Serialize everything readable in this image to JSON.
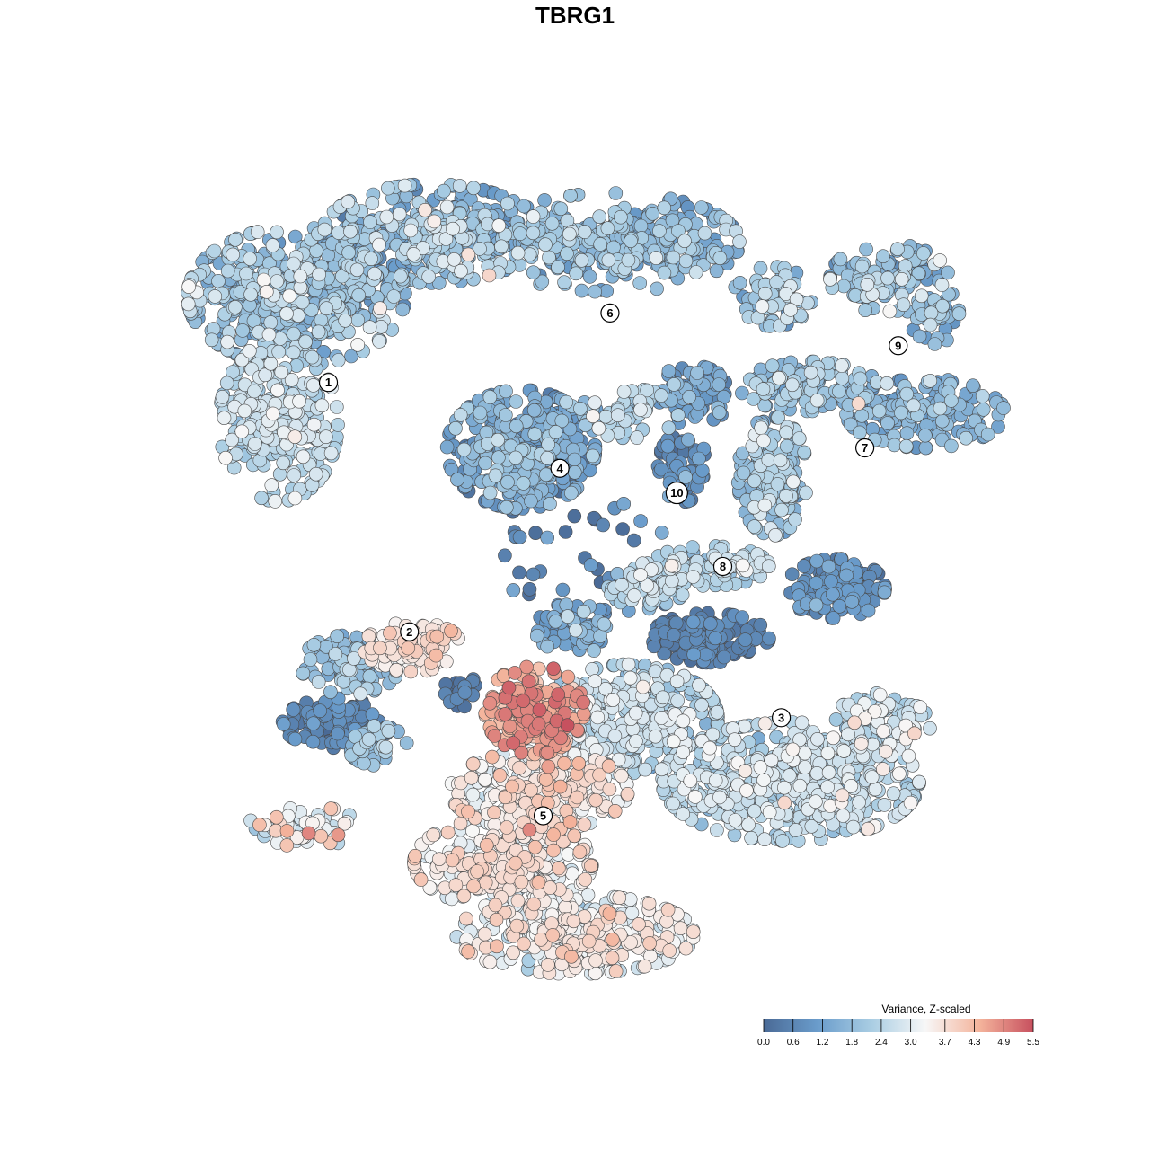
{
  "chart_data": {
    "type": "scatter",
    "title": "TBRG1",
    "xlabel": "",
    "ylabel": "",
    "xlim": [
      0,
      100
    ],
    "ylim": [
      0,
      100
    ],
    "grid": false,
    "colorbar": {
      "title": "Variance, Z-scaled",
      "ticks": [
        0.0,
        0.6,
        1.2,
        1.8,
        2.4,
        3.0,
        3.7,
        4.3,
        4.9,
        5.5
      ],
      "tick_labels": [
        "0.0",
        "0.6",
        "1.2",
        "1.8",
        "2.4",
        "3.0",
        "3.7",
        "4.3",
        "4.9",
        "5.5"
      ],
      "range": [
        0.0,
        5.5
      ],
      "placement": "bottom-right",
      "colors": [
        "#4a6a96",
        "#6a9ccb",
        "#a9cde3",
        "#f7f7f7",
        "#f4b49c",
        "#c7505e"
      ]
    },
    "clusters": [
      {
        "label": "1",
        "x": 17.8,
        "y": 73.0,
        "mean": 2.1
      },
      {
        "label": "2",
        "x": 27.5,
        "y": 42.5,
        "mean": 3.3
      },
      {
        "label": "3",
        "x": 72.0,
        "y": 32.0,
        "mean": 2.6
      },
      {
        "label": "4",
        "x": 45.5,
        "y": 62.5,
        "mean": 1.6
      },
      {
        "label": "5",
        "x": 43.5,
        "y": 20.0,
        "mean": 3.4
      },
      {
        "label": "6",
        "x": 51.5,
        "y": 81.5,
        "mean": 1.9
      },
      {
        "label": "7",
        "x": 82.0,
        "y": 65.0,
        "mean": 1.8
      },
      {
        "label": "8",
        "x": 65.0,
        "y": 50.5,
        "mean": 1.4
      },
      {
        "label": "9",
        "x": 86.0,
        "y": 77.5,
        "mean": 1.9
      },
      {
        "label": "10",
        "x": 59.5,
        "y": 59.5,
        "mean": 1.2
      }
    ]
  }
}
